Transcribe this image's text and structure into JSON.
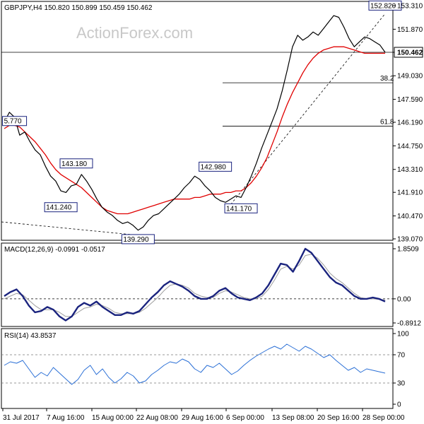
{
  "colors": {
    "price": "#000000",
    "sma": "#e00000",
    "macd": "#1a237e",
    "signal": "#9e9e9e",
    "rsi": "#2a6fd6",
    "grid": "#000000",
    "label_border": "#1a237e"
  },
  "watermark": "ActionForex.com",
  "chart_data": [
    {
      "type": "line",
      "panel": "price",
      "header": "GBPJPY,H4  150.820 150.899 150.459 150.462",
      "ylim": [
        139.07,
        153.31
      ],
      "y_ticks": [
        "153.310",
        "151.870",
        "150.462",
        "149.030",
        "147.590",
        "146.190",
        "144.750",
        "143.310",
        "141.910",
        "140.470",
        "139.070"
      ],
      "y_tick_values": [
        153.31,
        151.87,
        150.462,
        149.03,
        147.59,
        146.19,
        144.75,
        143.31,
        141.91,
        140.47,
        139.07
      ],
      "last_price": 150.462,
      "fib_levels": [
        {
          "label": "38.2",
          "value": 148.6
        },
        {
          "label": "61.8",
          "value": 145.95
        }
      ],
      "annotations": [
        {
          "text": "5.770",
          "x": 2,
          "y": 145.77
        },
        {
          "text": "143.180",
          "x": 14,
          "y": 143.18
        },
        {
          "text": "141.240",
          "x": 11,
          "y": 141.24
        },
        {
          "text": "139.290",
          "x": 26,
          "y": 139.29
        },
        {
          "text": "142.980",
          "x": 41,
          "y": 142.98
        },
        {
          "text": "141.170",
          "x": 46,
          "y": 141.17
        },
        {
          "text": "152.820",
          "x": 74,
          "y": 152.82
        }
      ],
      "series": [
        {
          "values": [
            146.2,
            146.8,
            146.5,
            145.4,
            145.6,
            145.0,
            144.5,
            144.2,
            143.5,
            142.9,
            142.6,
            142.0,
            141.9,
            142.3,
            142.4,
            143.0,
            142.6,
            142.1,
            141.5,
            141.0,
            140.7,
            140.5,
            140.2,
            140.0,
            140.1,
            139.9,
            139.6,
            139.8,
            140.2,
            140.5,
            140.6,
            140.9,
            141.2,
            141.5,
            141.8,
            142.2,
            142.5,
            142.9,
            142.7,
            142.3,
            142.0,
            141.6,
            141.4,
            141.3,
            141.5,
            141.7,
            141.6,
            142.2,
            142.9,
            143.7,
            144.6,
            145.4,
            146.2,
            147.0,
            148.1,
            149.4,
            150.8,
            151.5,
            151.2,
            151.4,
            151.7,
            151.5,
            151.9,
            152.3,
            152.7,
            152.6,
            152.0,
            151.3,
            150.8,
            151.1,
            151.4,
            151.3,
            151.1,
            150.9,
            150.462
          ]
        },
        {
          "values": [
            145.8,
            146.0,
            146.0,
            145.9,
            145.6,
            145.3,
            145.0,
            144.6,
            144.2,
            143.7,
            143.3,
            143.0,
            142.8,
            142.6,
            142.4,
            142.2,
            141.9,
            141.6,
            141.3,
            141.0,
            140.8,
            140.7,
            140.6,
            140.6,
            140.6,
            140.7,
            140.8,
            140.9,
            141.0,
            141.1,
            141.2,
            141.3,
            141.4,
            141.5,
            141.5,
            141.5,
            141.5,
            141.6,
            141.6,
            141.7,
            141.8,
            141.8,
            141.8,
            141.9,
            141.9,
            142.0,
            142.0,
            142.2,
            142.5,
            142.9,
            143.4,
            144.0,
            144.8,
            145.6,
            146.5,
            147.3,
            148.0,
            148.6,
            149.2,
            149.7,
            150.1,
            150.4,
            150.6,
            150.7,
            150.8,
            150.8,
            150.8,
            150.7,
            150.6,
            150.5,
            150.4,
            150.4,
            150.4,
            150.4,
            150.4
          ]
        }
      ]
    },
    {
      "type": "line",
      "panel": "macd",
      "header": "MACD(12,26,9) -0.0991 -0.0517",
      "ylim": [
        -0.8912,
        1.8509
      ],
      "y_ticks": [
        "1.8509",
        "0.00",
        "-0.8912"
      ],
      "y_tick_values": [
        1.8509,
        0.0,
        -0.8912
      ],
      "series": [
        {
          "values": [
            0.1,
            0.25,
            0.35,
            0.1,
            -0.25,
            -0.5,
            -0.45,
            -0.3,
            -0.4,
            -0.65,
            -0.8,
            -0.65,
            -0.3,
            -0.15,
            -0.25,
            -0.1,
            -0.3,
            -0.45,
            -0.6,
            -0.6,
            -0.5,
            -0.55,
            -0.45,
            -0.2,
            0.05,
            0.25,
            0.5,
            0.65,
            0.55,
            0.45,
            0.3,
            0.1,
            0.0,
            0.0,
            0.1,
            0.3,
            0.4,
            0.2,
            0.05,
            0.0,
            -0.05,
            0.05,
            0.2,
            0.5,
            0.9,
            1.3,
            1.25,
            1.0,
            1.4,
            1.85,
            1.7,
            1.4,
            1.1,
            0.8,
            0.6,
            0.5,
            0.3,
            0.1,
            0.0,
            0.0,
            0.05,
            0.0,
            -0.1
          ]
        },
        {
          "values": [
            0.0,
            0.1,
            0.2,
            0.15,
            -0.05,
            -0.25,
            -0.4,
            -0.4,
            -0.4,
            -0.5,
            -0.65,
            -0.65,
            -0.5,
            -0.35,
            -0.3,
            -0.2,
            -0.25,
            -0.35,
            -0.5,
            -0.55,
            -0.55,
            -0.55,
            -0.5,
            -0.35,
            -0.15,
            0.05,
            0.3,
            0.5,
            0.55,
            0.5,
            0.4,
            0.2,
            0.1,
            0.05,
            0.05,
            0.2,
            0.3,
            0.25,
            0.15,
            0.05,
            0.0,
            0.0,
            0.1,
            0.35,
            0.7,
            1.1,
            1.2,
            1.1,
            1.25,
            1.6,
            1.65,
            1.5,
            1.25,
            0.95,
            0.75,
            0.6,
            0.4,
            0.2,
            0.05,
            0.0,
            0.0,
            -0.02,
            -0.05
          ]
        }
      ]
    },
    {
      "type": "line",
      "panel": "rsi",
      "header": "RSI(14) 43.8537",
      "ylim": [
        0,
        100
      ],
      "y_ticks": [
        "100",
        "70",
        "30",
        "0"
      ],
      "y_tick_values": [
        100,
        70,
        30,
        0
      ],
      "levels": [
        70,
        30
      ],
      "series": [
        {
          "values": [
            55,
            60,
            58,
            62,
            50,
            38,
            45,
            40,
            52,
            44,
            36,
            28,
            35,
            48,
            55,
            42,
            50,
            38,
            30,
            36,
            45,
            40,
            30,
            33,
            42,
            48,
            55,
            60,
            58,
            64,
            60,
            50,
            45,
            55,
            52,
            58,
            50,
            42,
            47,
            55,
            62,
            68,
            73,
            78,
            82,
            78,
            85,
            80,
            75,
            82,
            78,
            72,
            66,
            70,
            62,
            55,
            48,
            52,
            45,
            50,
            48,
            46,
            44
          ]
        }
      ]
    }
  ],
  "x_axis": {
    "ticks": [
      "31 Jul 2017",
      "7 Aug 16:00",
      "15 Aug 00:00",
      "22 Aug 08:00",
      "29 Aug 16:00",
      "6 Sep 00:00",
      "13 Sep 08:00",
      "20 Sep 16:00",
      "28 Sep 00:00"
    ]
  }
}
